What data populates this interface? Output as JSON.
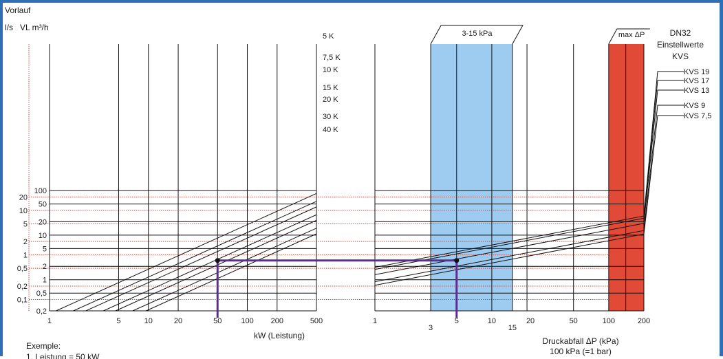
{
  "title": "Vorlauf",
  "y_units": {
    "ls": "l/s",
    "m3h": "VL m³/h"
  },
  "left_chart": {
    "xlabel": "kW (Leistung)",
    "x_ticks": [
      "1",
      "5",
      "10",
      "20",
      "50",
      "100",
      "200",
      "500"
    ],
    "y_ticks_m3h": [
      "100",
      "50",
      "20",
      "10",
      "5",
      "2",
      "1",
      "0,5",
      "0,2"
    ],
    "y_ticks_ls": [
      "20",
      "10",
      "5",
      "2",
      "1",
      "0,5",
      "0,2",
      "0,1"
    ],
    "k_labels": [
      "5 K",
      "7,5 K",
      "10 K",
      "15 K",
      "20 K",
      "30 K",
      "40 K"
    ]
  },
  "right_chart": {
    "title_lines": [
      "DN32",
      "Einstellwerte",
      "KVS"
    ],
    "xlabel_lines": [
      "Druckabfall ΔP (kPa)",
      "100 kPa (=1 bar)"
    ],
    "x_ticks_top": [
      "1",
      "5",
      "10",
      "20",
      "50",
      "100",
      "200"
    ],
    "x_ticks_bottom": [
      "3",
      "15"
    ],
    "range_label": "3-15 kPa",
    "max_label": "max ΔP",
    "kvs_labels": [
      "KVS 19",
      "KVS 17",
      "KVS 13",
      "KVS 9",
      "KVS 7,5"
    ]
  },
  "example": {
    "heading": "Exemple:",
    "line1": "1. Leistung = 50 kW"
  },
  "colors": {
    "frame": "#2f6fb5",
    "blue_band": "#9ecbf0",
    "red_band": "#e04a37",
    "example_path": "#5b2d8e",
    "red_grid": "#e04a37"
  },
  "chart_data": [
    {
      "type": "line",
      "x_label": "kW (Leistung)",
      "x_scale": "log",
      "xlim": [
        1,
        500
      ],
      "y_left_label": "l/s",
      "y_right_label": "VL m³/h",
      "y_scale": "log",
      "ylim_m3h": [
        0.2,
        100
      ],
      "series": [
        {
          "name": "5 K",
          "x": [
            1,
            500
          ],
          "y_m3h": [
            0.172,
            86
          ]
        },
        {
          "name": "7,5 K",
          "x": [
            1,
            500
          ],
          "y_m3h": [
            0.115,
            57.3
          ]
        },
        {
          "name": "10 K",
          "x": [
            1,
            500
          ],
          "y_m3h": [
            0.086,
            43
          ]
        },
        {
          "name": "15 K",
          "x": [
            1,
            500
          ],
          "y_m3h": [
            0.057,
            28.7
          ]
        },
        {
          "name": "20 K",
          "x": [
            1,
            500
          ],
          "y_m3h": [
            0.043,
            21.5
          ]
        },
        {
          "name": "30 K",
          "x": [
            1,
            500
          ],
          "y_m3h": [
            0.029,
            14.3
          ]
        },
        {
          "name": "40 K",
          "x": [
            1,
            500
          ],
          "y_m3h": [
            0.021,
            10.7
          ]
        }
      ],
      "example_point": {
        "x": 50,
        "y_m3h": 2.7
      }
    },
    {
      "type": "line",
      "x_label": "Druckabfall ΔP (kPa)",
      "x_scale": "log",
      "xlim": [
        1,
        200
      ],
      "y_scale": "log",
      "bands": [
        {
          "label": "3-15 kPa",
          "from": 3,
          "to": 15,
          "color": "#9ecbf0"
        },
        {
          "label": "max ΔP",
          "from": 100,
          "to": 200,
          "color": "#e04a37"
        }
      ],
      "series": [
        {
          "name": "KVS 19",
          "x": [
            1,
            200
          ],
          "y_m3h": [
            1.9,
            26.9
          ]
        },
        {
          "name": "KVS 17",
          "x": [
            1,
            200
          ],
          "y_m3h": [
            1.7,
            24.0
          ]
        },
        {
          "name": "KVS 13",
          "x": [
            1,
            200
          ],
          "y_m3h": [
            1.3,
            18.4
          ]
        },
        {
          "name": "KVS 9",
          "x": [
            1,
            200
          ],
          "y_m3h": [
            0.9,
            12.7
          ]
        },
        {
          "name": "KVS 7,5",
          "x": [
            1,
            200
          ],
          "y_m3h": [
            0.75,
            10.6
          ]
        }
      ],
      "example_point": {
        "x": 5,
        "y_m3h": 2.7
      }
    }
  ]
}
